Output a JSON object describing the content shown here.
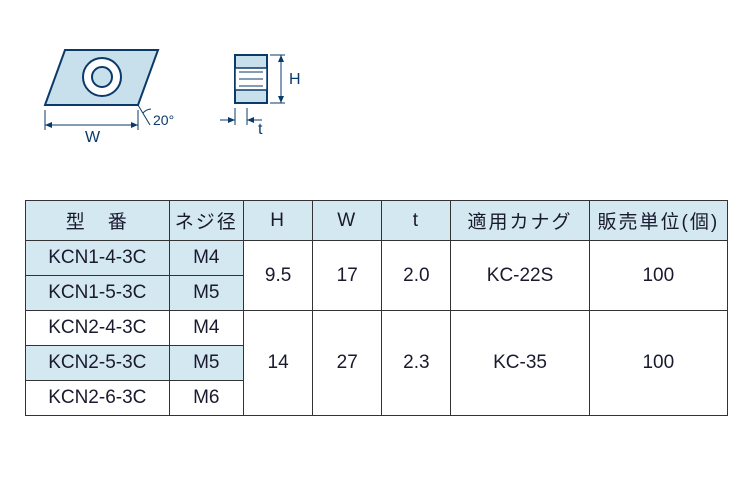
{
  "diagram": {
    "front": {
      "label_w": "W",
      "label_angle": "20°",
      "fill": "#c8e0ec",
      "stroke": "#0a3a6a"
    },
    "side": {
      "label_h": "H",
      "label_t": "t",
      "fill": "#c8e0ec",
      "stroke": "#0a3a6a"
    }
  },
  "table": {
    "headers": {
      "model": "型　番",
      "thread": "ネジ径",
      "h": "H",
      "w": "W",
      "t": "t",
      "apply": "適用カナグ",
      "unit": "販売単位(個)"
    },
    "groups": [
      {
        "h": "9.5",
        "w": "17",
        "t": "2.0",
        "apply": "KC-22S",
        "unit": "100",
        "rows": [
          {
            "model": "KCN1-4-3C",
            "thread": "M4",
            "shade": true
          },
          {
            "model": "KCN1-5-3C",
            "thread": "M5",
            "shade": true
          }
        ]
      },
      {
        "h": "14",
        "w": "27",
        "t": "2.3",
        "apply": "KC-35",
        "unit": "100",
        "rows": [
          {
            "model": "KCN2-4-3C",
            "thread": "M4",
            "shade": false
          },
          {
            "model": "KCN2-5-3C",
            "thread": "M5",
            "shade": true
          },
          {
            "model": "KCN2-6-3C",
            "thread": "M6",
            "shade": false
          }
        ]
      }
    ]
  }
}
